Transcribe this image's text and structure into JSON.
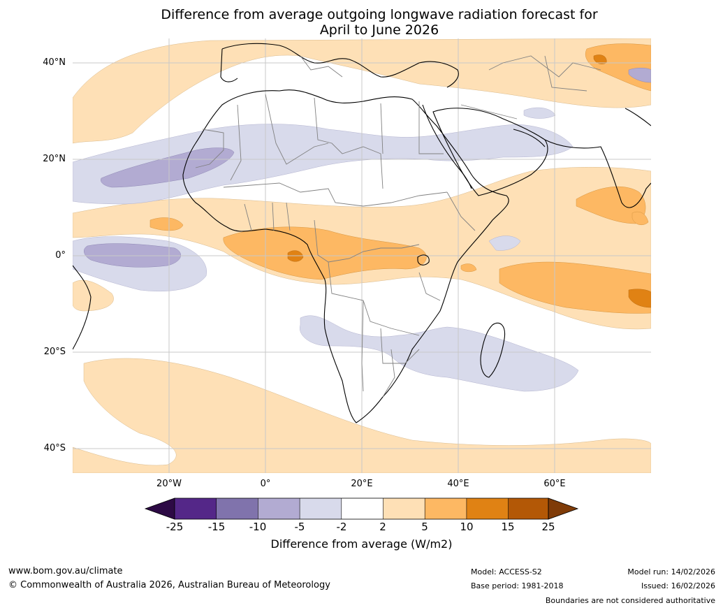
{
  "title": {
    "line1": "Difference from average outgoing longwave radiation forecast for",
    "line2": "April to June 2026"
  },
  "map": {
    "lat_labels": [
      "40°N",
      "20°N",
      "0°",
      "20°S",
      "40°S"
    ],
    "lon_labels": [
      "20°W",
      "0°",
      "20°E",
      "40°E",
      "60°E"
    ]
  },
  "colorbar": {
    "ticks": [
      "-25",
      "-15",
      "-10",
      "-5",
      "-2",
      "2",
      "5",
      "10",
      "15",
      "25"
    ],
    "title": "Difference from average (W/m2)",
    "colors": {
      "under": "#2d0a45",
      "c1": "#542788",
      "c2": "#8073ac",
      "c3": "#b2abd2",
      "c4": "#d8daeb",
      "c5": "#ffffff",
      "c6": "#fee0b6",
      "c7": "#fdb863",
      "c8": "#e08214",
      "c9": "#b35806",
      "over": "#7f3b08"
    }
  },
  "footer": {
    "website": "www.bom.gov.au/climate",
    "copyright": "© Commonwealth of Australia 2026, Australian Bureau of Meteorology",
    "model": "Model: ACCESS-S2",
    "base_period": "Base period: 1981-2018",
    "model_run": "Model run: 14/02/2026",
    "issued": "Issued: 16/02/2026",
    "disclaimer": "Boundaries are not considered authoritative"
  }
}
